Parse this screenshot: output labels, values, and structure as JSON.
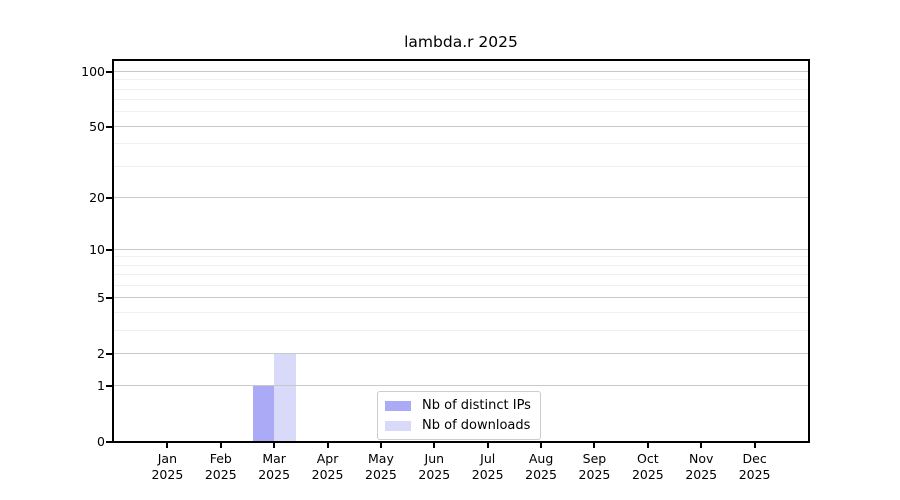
{
  "title": "lambda.r 2025",
  "chart_data": {
    "type": "bar",
    "title": "lambda.r 2025",
    "x": {
      "months": [
        "Jan",
        "Feb",
        "Mar",
        "Apr",
        "May",
        "Jun",
        "Jul",
        "Aug",
        "Sep",
        "Oct",
        "Nov",
        "Dec"
      ],
      "year": "2025"
    },
    "y_axis": {
      "scale": "log1p",
      "tick_labels_top_to_bottom": [
        "100",
        "50",
        "20",
        "10",
        "5",
        "2",
        "1",
        "0"
      ],
      "major_ticks": [
        0,
        1,
        2,
        5,
        10,
        20,
        50,
        100
      ],
      "minor_ticks": [
        3,
        4,
        6,
        7,
        8,
        9,
        30,
        40,
        60,
        70,
        80,
        90
      ],
      "top_value": 115
    },
    "series": [
      {
        "name": "Nb of distinct IPs",
        "color": "#aaaaf7",
        "values": [
          0,
          0,
          1,
          0,
          0,
          0,
          0,
          0,
          0,
          0,
          0,
          0
        ]
      },
      {
        "name": "Nb of downloads",
        "color": "#d9d9fa",
        "values": [
          0,
          0,
          2,
          0,
          0,
          0,
          0,
          0,
          0,
          0,
          0,
          0
        ]
      }
    ],
    "legend": {
      "position": "lower center",
      "entries": [
        "Nb of distinct IPs",
        "Nb of downloads"
      ]
    },
    "grid": true
  },
  "colors": {
    "major_grid": "#c9c9c9",
    "minor_grid": "#efefef",
    "axis": "#000000",
    "background": "#ffffff",
    "text": "#000000"
  }
}
